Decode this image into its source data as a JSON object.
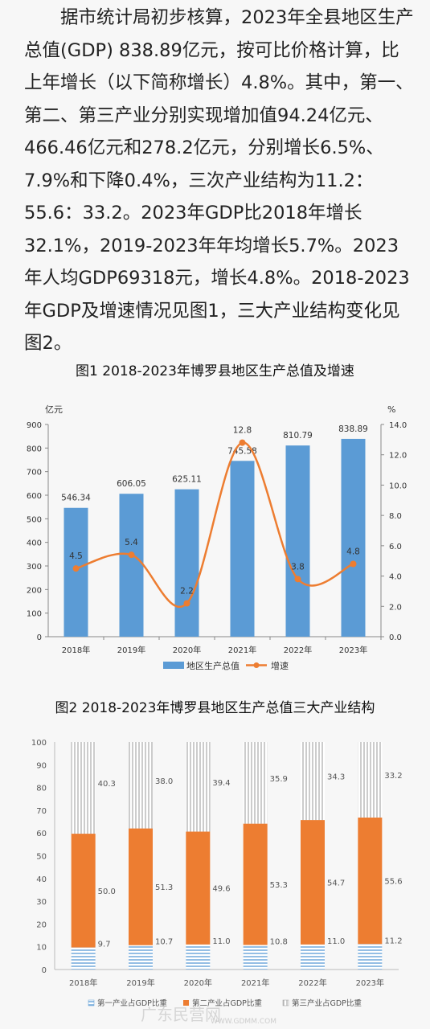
{
  "article": {
    "paragraph": "据市统计局初步核算，2023年全县地区生产总值(GDP) 838.89亿元，按可比价格计算，比上年增长（以下简称增长）4.8%。其中，第一、第二、第三产业分别实现增加值94.24亿元、466.46亿元和278.2亿元，分别增长6.5%、7.9%和下降0.4%，三次产业结构为11.2：55.6：33.2。2023年GDP比2018年增长32.1%，2019-2023年年均增长5.7%。2023年人均GDP69318元，增长4.8%。2018-2023年GDP及增速情况见图1，三大产业结构变化见图2。"
  },
  "chart_data": [
    {
      "type": "bar",
      "title": "图1 2018-2023年博罗县地区生产总值及增速",
      "categories": [
        "2018年",
        "2019年",
        "2020年",
        "2021年",
        "2022年",
        "2023年"
      ],
      "ylabel_left": "亿元",
      "ylabel_right": "%",
      "ylim_left": [
        0,
        900
      ],
      "ylim_right": [
        0,
        14
      ],
      "yticks_left": [
        "0",
        "100",
        "200",
        "300",
        "400",
        "500",
        "600",
        "700",
        "800",
        "900"
      ],
      "yticks_right": [
        "0.0",
        "2.0",
        "4.0",
        "6.0",
        "8.0",
        "10.0",
        "12.0",
        "14.0"
      ],
      "series": [
        {
          "name": "地区生产总值",
          "kind": "bar",
          "color": "#5b9bd5",
          "values": [
            546.34,
            606.05,
            625.11,
            745.58,
            810.79,
            838.89
          ],
          "labels": [
            "546.34",
            "606.05",
            "625.11",
            "745.58",
            "810.79",
            "838.89"
          ]
        },
        {
          "name": "增速",
          "kind": "line",
          "color": "#ed7d31",
          "values": [
            4.5,
            5.4,
            2.2,
            12.8,
            3.8,
            4.8
          ],
          "labels": [
            "4.5",
            "5.4",
            "2.2",
            "12.8",
            "3.8",
            "4.8"
          ]
        }
      ],
      "legend": "bottom",
      "grid": false
    },
    {
      "type": "bar",
      "stacked": true,
      "title": "图2 2018-2023年博罗县地区生产总值三大产业结构",
      "categories": [
        "2018年",
        "2019年",
        "2020年",
        "2021年",
        "2022年",
        "2023年"
      ],
      "ylim": [
        0,
        100
      ],
      "yticks": [
        "0",
        "10",
        "20",
        "30",
        "40",
        "50",
        "60",
        "70",
        "80",
        "90",
        "100"
      ],
      "series": [
        {
          "name": "第一产业占GDP比重",
          "color": "#5b9bd5",
          "pattern": "horizontal-lines",
          "values": [
            9.7,
            10.7,
            11.0,
            10.8,
            11.0,
            11.2
          ],
          "labels": [
            "9.7",
            "10.7",
            "11.0",
            "10.8",
            "11.0",
            "11.2"
          ]
        },
        {
          "name": "第二产业占GDP比重",
          "color": "#ed7d31",
          "pattern": "solid",
          "values": [
            50.0,
            51.3,
            49.6,
            53.3,
            54.7,
            55.6
          ],
          "labels": [
            "50.0",
            "51.3",
            "49.6",
            "53.3",
            "54.7",
            "55.6"
          ]
        },
        {
          "name": "第三产业占GDP比重",
          "color": "#a5a5a5",
          "pattern": "vertical-lines",
          "values": [
            40.3,
            38.0,
            39.4,
            35.9,
            34.3,
            33.2
          ],
          "labels": [
            "40.3",
            "38.0",
            "39.4",
            "35.9",
            "34.3",
            "33.2"
          ]
        }
      ],
      "legend": "bottom",
      "grid": false
    }
  ],
  "watermark": {
    "text": "广东民营网",
    "url": "WWW.GDMM.COM"
  }
}
